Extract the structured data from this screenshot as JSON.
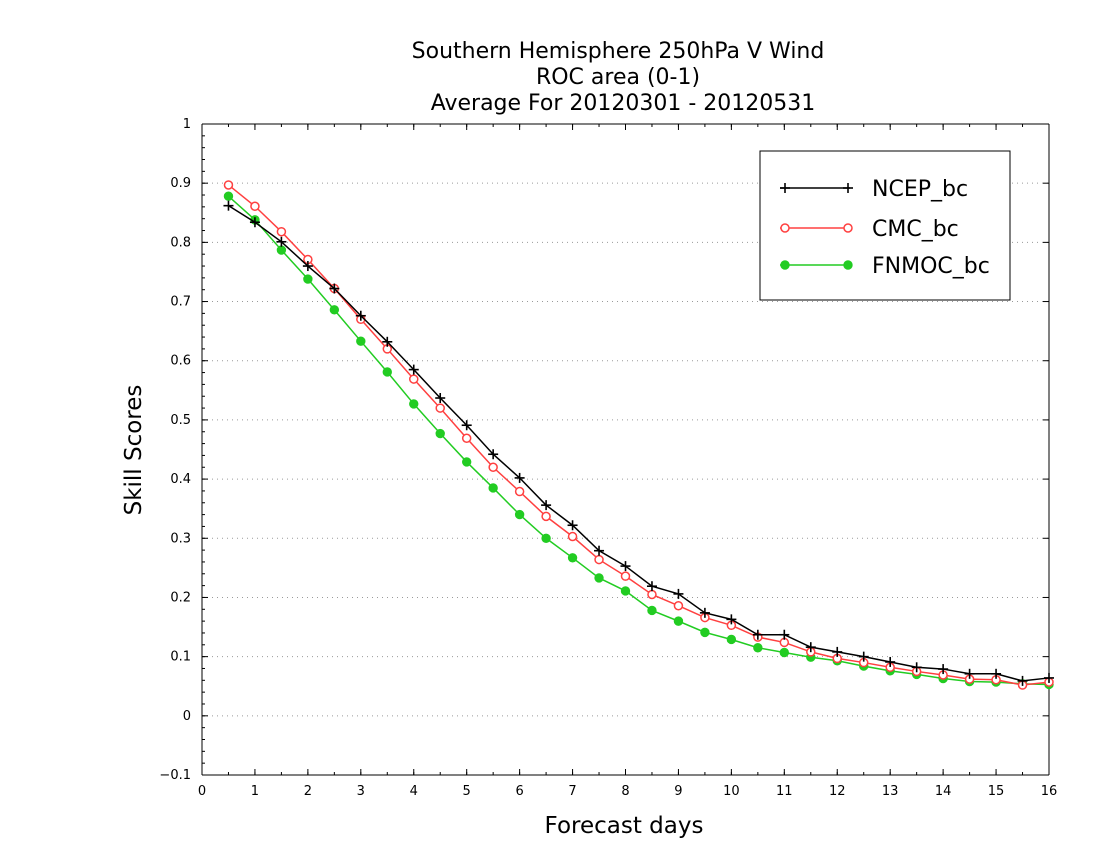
{
  "chart_data": {
    "type": "line",
    "title": "Southern Hemisphere 250hPa V Wind",
    "subtitle": "ROC area (0-1)",
    "subtitle2": "Average For 20120301 - 20120531",
    "xlabel": "Forecast days",
    "ylabel": "Skill Scores",
    "xlim": [
      0,
      16
    ],
    "ylim": [
      -0.1,
      1
    ],
    "xticks": [
      "0",
      "1",
      "2",
      "3",
      "4",
      "5",
      "6",
      "7",
      "8",
      "9",
      "10",
      "11",
      "12",
      "13",
      "14",
      "15",
      "16"
    ],
    "yticks": [
      "−0.1",
      "0",
      "0.1",
      "0.2",
      "0.3",
      "0.4",
      "0.5",
      "0.6",
      "0.7",
      "0.8",
      "0.9",
      "1"
    ],
    "grid": true,
    "legend_position": "top-right",
    "x": [
      0.5,
      1,
      1.5,
      2,
      2.5,
      3,
      3.5,
      4,
      4.5,
      5,
      5.5,
      6,
      6.5,
      7,
      7.5,
      8,
      8.5,
      9,
      9.5,
      10,
      10.5,
      11,
      11.5,
      12,
      12.5,
      13,
      13.5,
      14,
      14.5,
      15,
      15.5,
      16
    ],
    "series": [
      {
        "name": "NCEP_bc",
        "color": "#000000",
        "marker": "plus",
        "values": [
          0.862,
          0.834,
          0.801,
          0.76,
          0.722,
          0.676,
          0.632,
          0.585,
          0.537,
          0.491,
          0.442,
          0.402,
          0.356,
          0.322,
          0.279,
          0.253,
          0.219,
          0.206,
          0.174,
          0.163,
          0.137,
          0.137,
          0.116,
          0.108,
          0.1,
          0.091,
          0.082,
          0.079,
          0.071,
          0.071,
          0.059,
          0.064
        ]
      },
      {
        "name": "CMC_bc",
        "color": "#ff4040",
        "marker": "open-circle",
        "values": [
          0.897,
          0.861,
          0.818,
          0.771,
          0.722,
          0.67,
          0.62,
          0.569,
          0.52,
          0.469,
          0.42,
          0.379,
          0.337,
          0.303,
          0.264,
          0.236,
          0.205,
          0.186,
          0.166,
          0.153,
          0.133,
          0.124,
          0.108,
          0.097,
          0.09,
          0.082,
          0.075,
          0.069,
          0.062,
          0.061,
          0.052,
          0.057
        ]
      },
      {
        "name": "FNMOC_bc",
        "color": "#22cc22",
        "marker": "filled-circle",
        "values": [
          0.878,
          0.838,
          0.787,
          0.738,
          0.686,
          0.633,
          0.581,
          0.527,
          0.477,
          0.429,
          0.385,
          0.34,
          0.3,
          0.267,
          0.233,
          0.211,
          0.178,
          0.16,
          0.141,
          0.129,
          0.115,
          0.107,
          0.099,
          0.093,
          0.084,
          0.076,
          0.07,
          0.063,
          0.058,
          0.057,
          0.054,
          0.053
        ]
      }
    ]
  }
}
